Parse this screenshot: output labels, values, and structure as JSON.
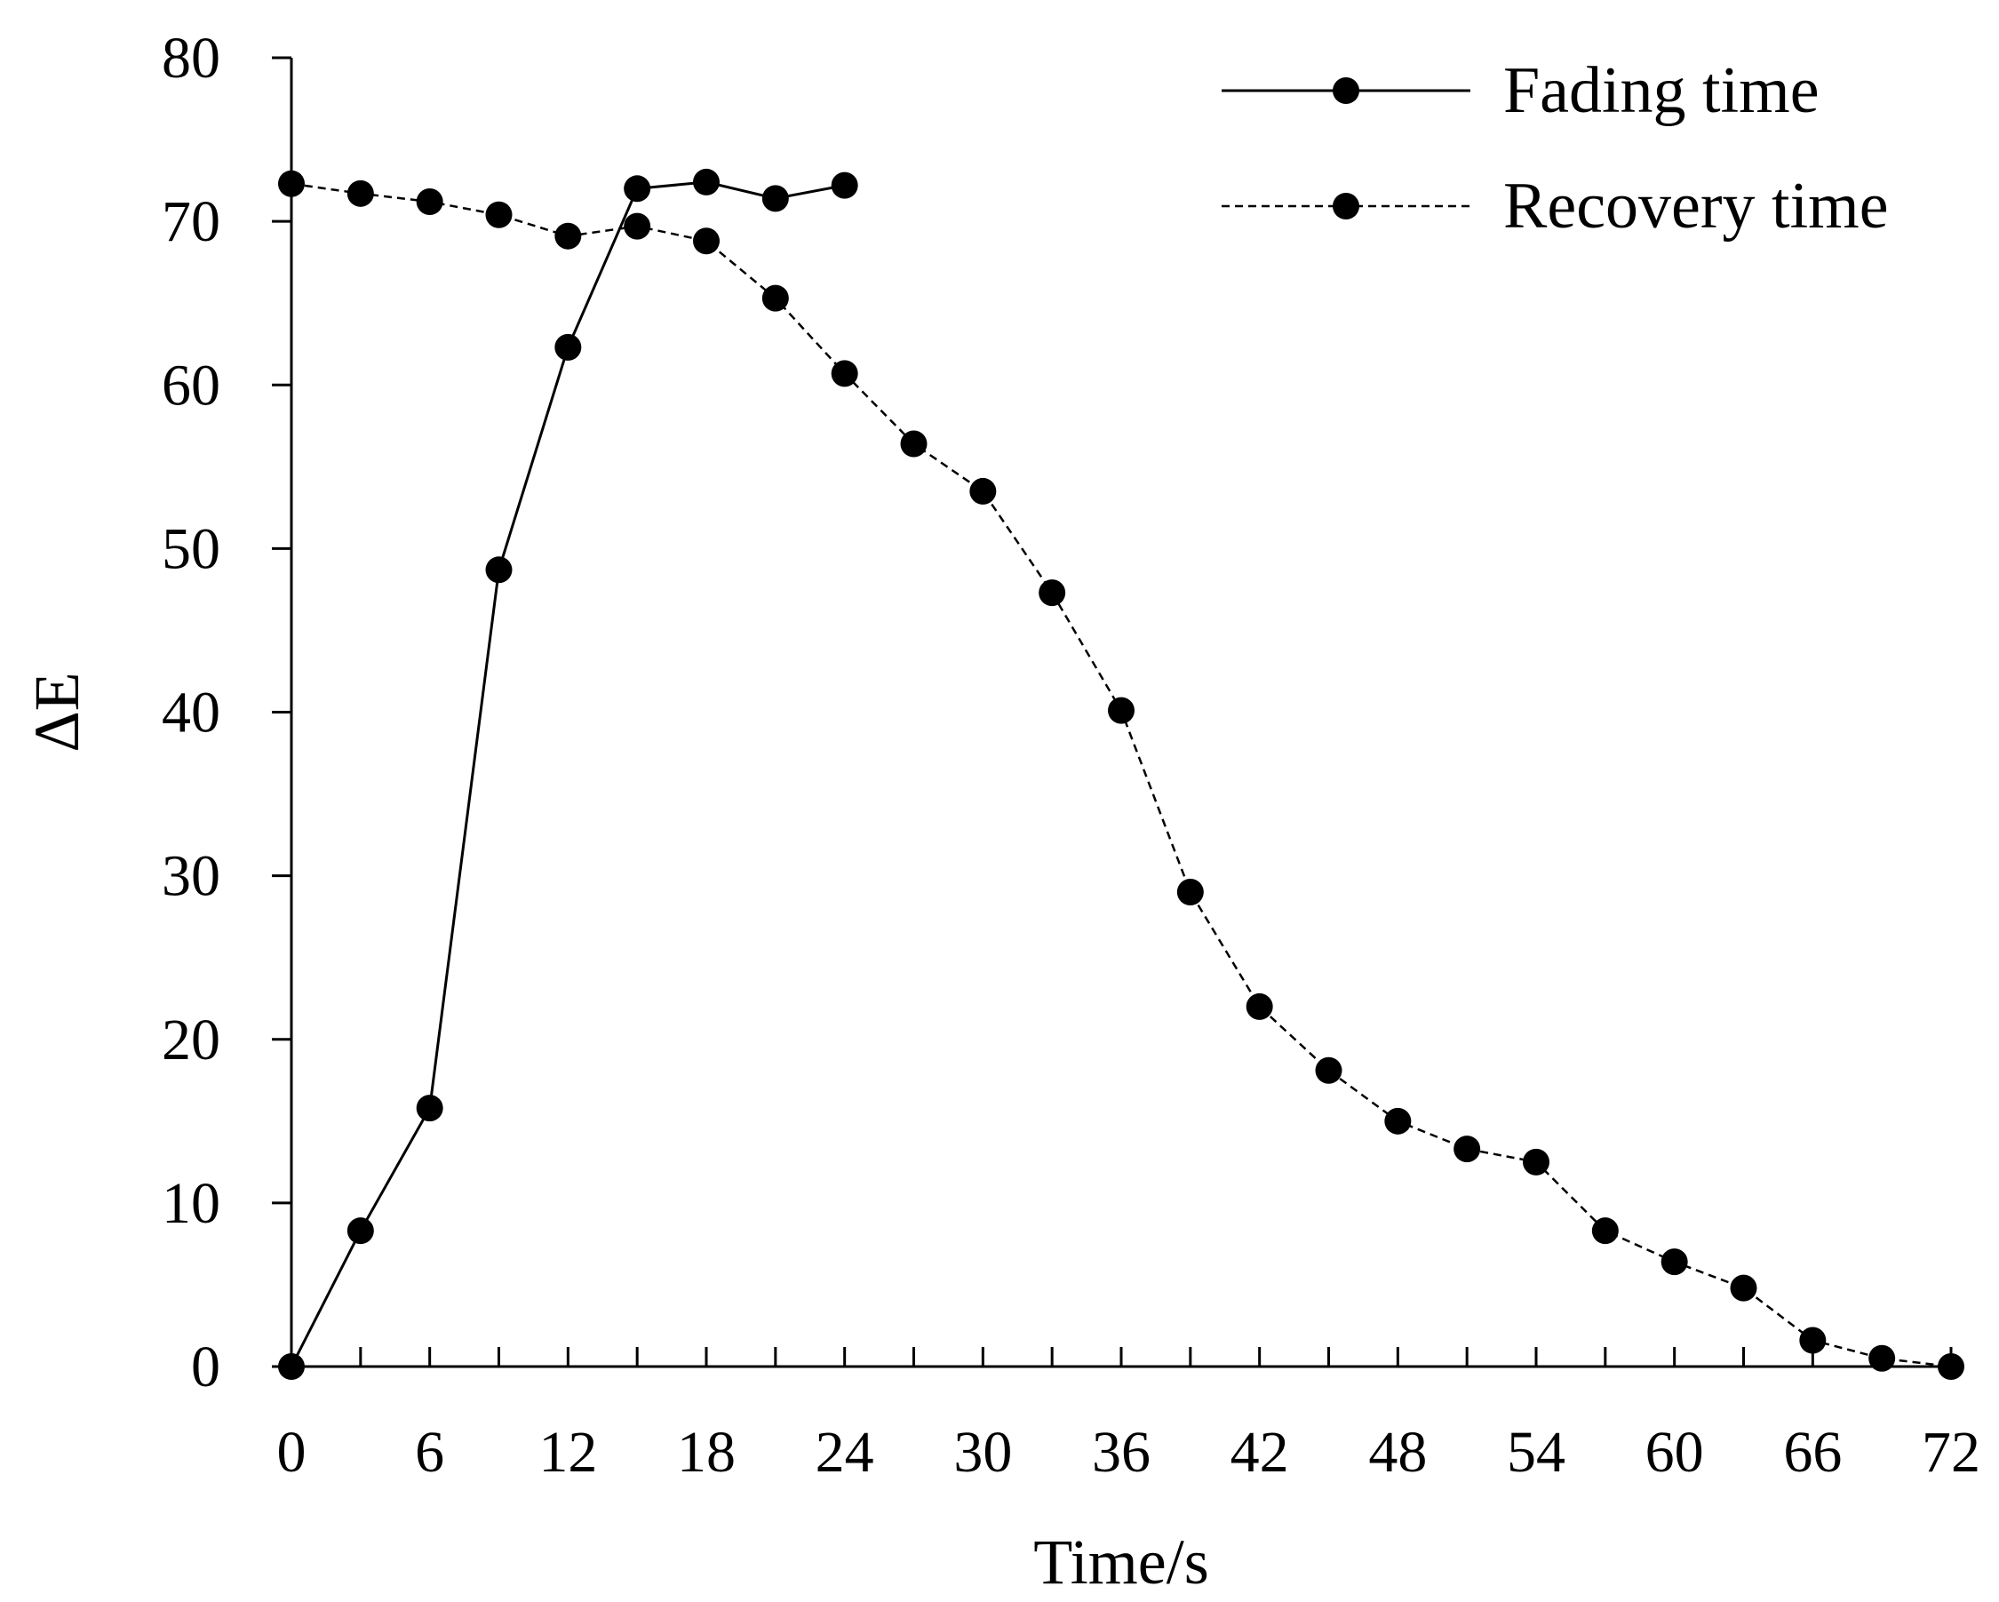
{
  "chart_data": {
    "type": "line",
    "title": "",
    "xlabel": "Time/s",
    "ylabel": "ΔE",
    "xlim": [
      0,
      72
    ],
    "ylim": [
      0,
      80
    ],
    "x_ticks": [
      0,
      6,
      12,
      18,
      24,
      30,
      36,
      42,
      48,
      54,
      60,
      66,
      72
    ],
    "y_ticks": [
      0,
      10,
      20,
      30,
      40,
      50,
      60,
      70,
      80
    ],
    "grid": false,
    "legend_position": "top-right",
    "series": [
      {
        "name": "Fading time",
        "style": "solid",
        "color": "#000000",
        "x": [
          0,
          3,
          6,
          9,
          12,
          15,
          18,
          21,
          24
        ],
        "y": [
          0,
          8.3,
          15.8,
          48.7,
          62.3,
          72.0,
          72.4,
          71.4,
          72.2
        ]
      },
      {
        "name": "Recovery time",
        "style": "dashed",
        "color": "#000000",
        "x": [
          0,
          3,
          6,
          9,
          12,
          15,
          18,
          21,
          24,
          27,
          30,
          33,
          36,
          39,
          42,
          45,
          48,
          51,
          54,
          57,
          60,
          63,
          66,
          69,
          72
        ],
        "y": [
          72.3,
          71.7,
          71.2,
          70.4,
          69.1,
          69.7,
          68.8,
          65.3,
          60.7,
          56.4,
          53.5,
          47.3,
          40.1,
          29.0,
          22.0,
          18.1,
          15.0,
          13.3,
          12.5,
          8.3,
          6.4,
          4.8,
          1.6,
          0.5,
          0
        ]
      }
    ]
  }
}
